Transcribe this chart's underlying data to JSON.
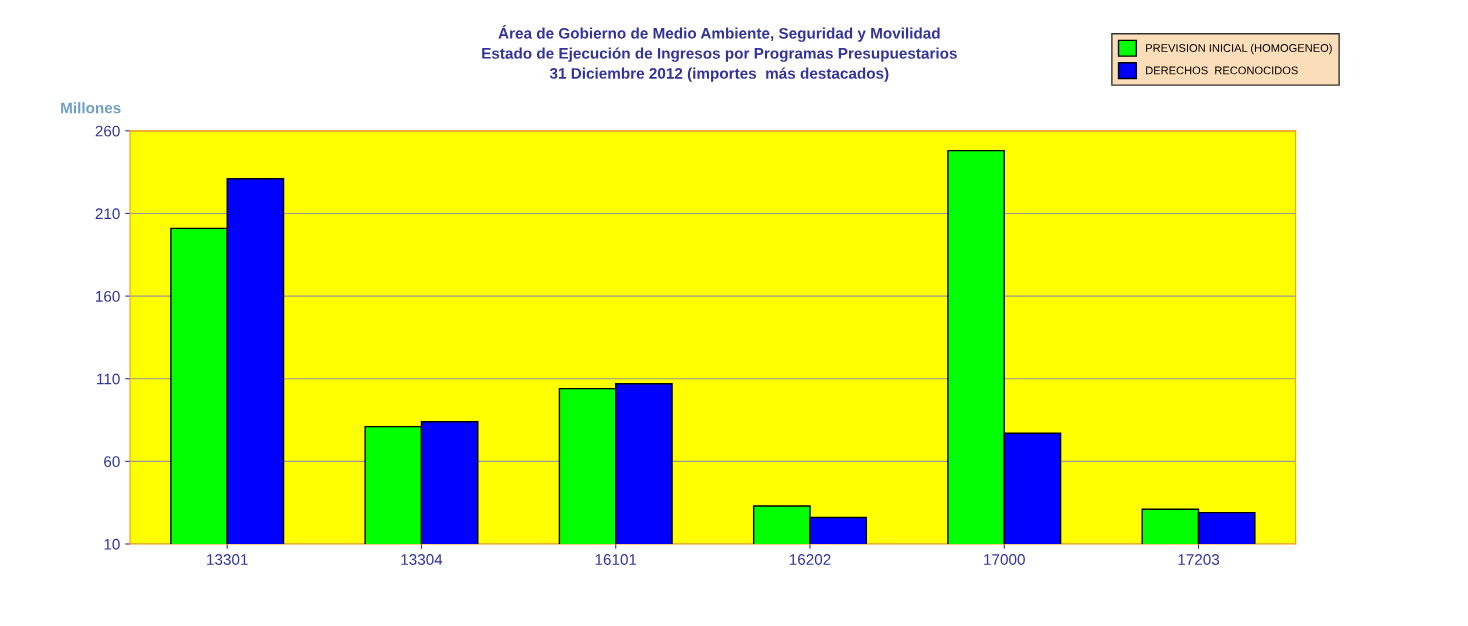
{
  "chart_data": {
    "type": "bar",
    "title": "Área de Gobierno de Medio Ambiente, Seguridad y Movilidad\nEstado de Ejecución de Ingresos por Programas Presupuestarios\n31 Diciembre 2012 (importes  más destacados)",
    "ylabel": "Millones",
    "categories": [
      "13301",
      "13304",
      "16101",
      "16202",
      "17000",
      "17203"
    ],
    "series": [
      {
        "name": "PREVISION INICIAL (HOMOGENEO)",
        "color": "#00ff00",
        "values": [
          201,
          81,
          104,
          33,
          248,
          31
        ]
      },
      {
        "name": "DERECHOS  RECONOCIDOS",
        "color": "#0000ff",
        "values": [
          231,
          84,
          107,
          26,
          77,
          29
        ]
      }
    ],
    "ylim": [
      10,
      260
    ],
    "yticks": [
      10,
      60,
      110,
      160,
      210,
      260
    ],
    "grid": "y",
    "legend": "top right"
  }
}
